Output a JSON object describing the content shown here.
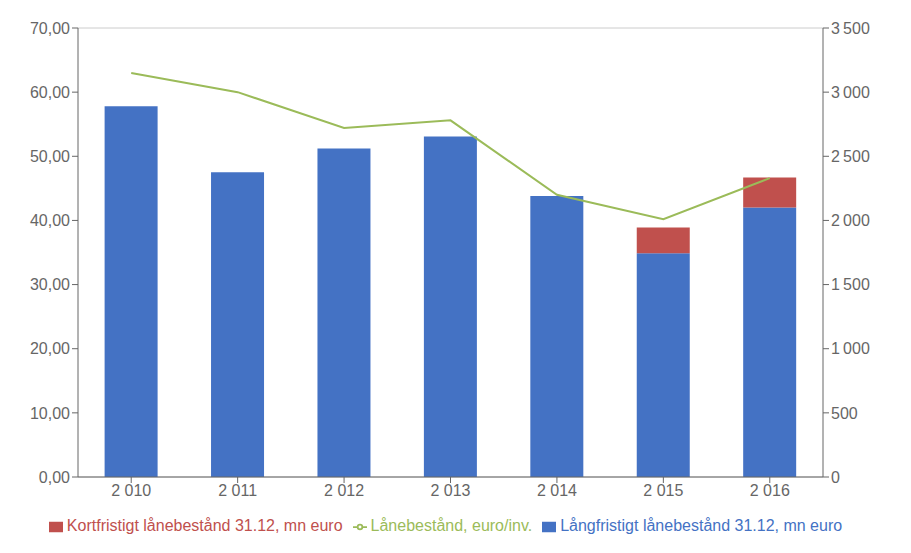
{
  "chart_data": {
    "type": "bar",
    "stacked": true,
    "grid": true,
    "legend": "bottom",
    "categories": [
      "2 010",
      "2 011",
      "2 012",
      "2 013",
      "2 014",
      "2 015",
      "2 016"
    ],
    "series": [
      {
        "name": "Långfristigt lånebestånd 31.12, mn euro",
        "color": "#4472C4",
        "values": [
          57.8,
          47.5,
          51.2,
          53.1,
          43.8,
          34.9,
          42.0
        ]
      },
      {
        "name": "Kortfristigt lånebestånd 31.12, mn euro",
        "color": "#C0504D",
        "values": [
          0.0,
          0.0,
          0.0,
          0.0,
          0.0,
          4.0,
          4.7
        ]
      },
      {
        "name": "Lånebestånd, euro/inv.",
        "type": "line",
        "axis": "y2",
        "color": "#9BBB59",
        "values": [
          3150,
          3000,
          2720,
          2780,
          2200,
          2010,
          2330
        ]
      }
    ],
    "ylim": [
      0,
      70
    ],
    "yticks": [
      {
        "value": 0,
        "label": "0,00"
      },
      {
        "value": 10,
        "label": "10,00"
      },
      {
        "value": 20,
        "label": "20,00"
      },
      {
        "value": 30,
        "label": "30,00"
      },
      {
        "value": 40,
        "label": "40,00"
      },
      {
        "value": 50,
        "label": "50,00"
      },
      {
        "value": 60,
        "label": "60,00"
      },
      {
        "value": 70,
        "label": "70,00"
      }
    ],
    "y2lim": [
      0,
      3500
    ],
    "y2ticks": [
      0,
      500,
      {
        "value": 1000,
        "label": "1 000"
      },
      {
        "value": 1500,
        "label": "1 500"
      },
      {
        "value": 2000,
        "label": "2 000"
      },
      {
        "value": 2500,
        "label": "2 500"
      },
      {
        "value": 3000,
        "label": "3 000"
      },
      {
        "value": 3500,
        "label": "3 500"
      }
    ]
  }
}
